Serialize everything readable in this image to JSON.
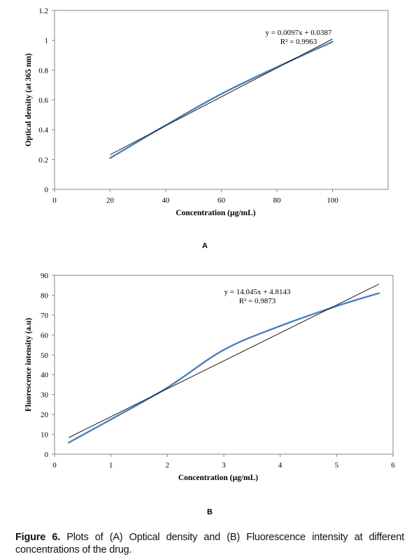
{
  "chart_data": [
    {
      "type": "scatter",
      "panel_label": "A",
      "title": "",
      "xlabel": "Concentration (µg/mL)",
      "ylabel": "Optical density (at 365 nm)",
      "xlim": [
        0,
        120
      ],
      "ylim": [
        0,
        1.2
      ],
      "xticks": [
        0,
        20,
        40,
        60,
        80,
        100
      ],
      "yticks": [
        0,
        0.2,
        0.4,
        0.6,
        0.8,
        1,
        1.2
      ],
      "grid": false,
      "series": [
        {
          "kind": "smooth-line",
          "color": "#4a7ebb",
          "x": [
            20,
            40,
            60,
            80,
            100
          ],
          "y": [
            0.21,
            0.43,
            0.64,
            0.82,
            0.99
          ]
        },
        {
          "kind": "trendline",
          "color": "#000000",
          "x": [
            20,
            100
          ],
          "y": [
            0.2327,
            1.0087
          ]
        }
      ],
      "annotations": [
        "y = 0.0097x + 0.0387",
        "R² = 0.9963"
      ]
    },
    {
      "type": "scatter",
      "panel_label": "B",
      "title": "",
      "xlabel": "Concentration (µg/mL)",
      "ylabel": "Fluorescence intensity (a.u)",
      "xlim": [
        0,
        6
      ],
      "ylim": [
        0,
        90
      ],
      "xticks": [
        0,
        1,
        2,
        3,
        4,
        5,
        6
      ],
      "yticks": [
        0,
        10,
        20,
        30,
        40,
        50,
        60,
        70,
        80,
        90
      ],
      "grid": false,
      "series": [
        {
          "kind": "smooth-line",
          "color": "#4a7ebb",
          "x": [
            0.25,
            1,
            2,
            3,
            4,
            5,
            5.75
          ],
          "y": [
            5.8,
            17.5,
            33.5,
            52.5,
            64.5,
            74.5,
            81
          ]
        },
        {
          "kind": "trendline",
          "color": "#000000",
          "x": [
            0.25,
            5.75
          ],
          "y": [
            8.33,
            85.57
          ]
        }
      ],
      "annotations": [
        "y = 14.045x + 4.8143",
        "R² = 0.9873"
      ]
    }
  ],
  "caption": {
    "label": "Figure 6.",
    "text": " Plots of (A) Optical density and (B) Fluorescence intensity at different concentrations of the drug."
  }
}
